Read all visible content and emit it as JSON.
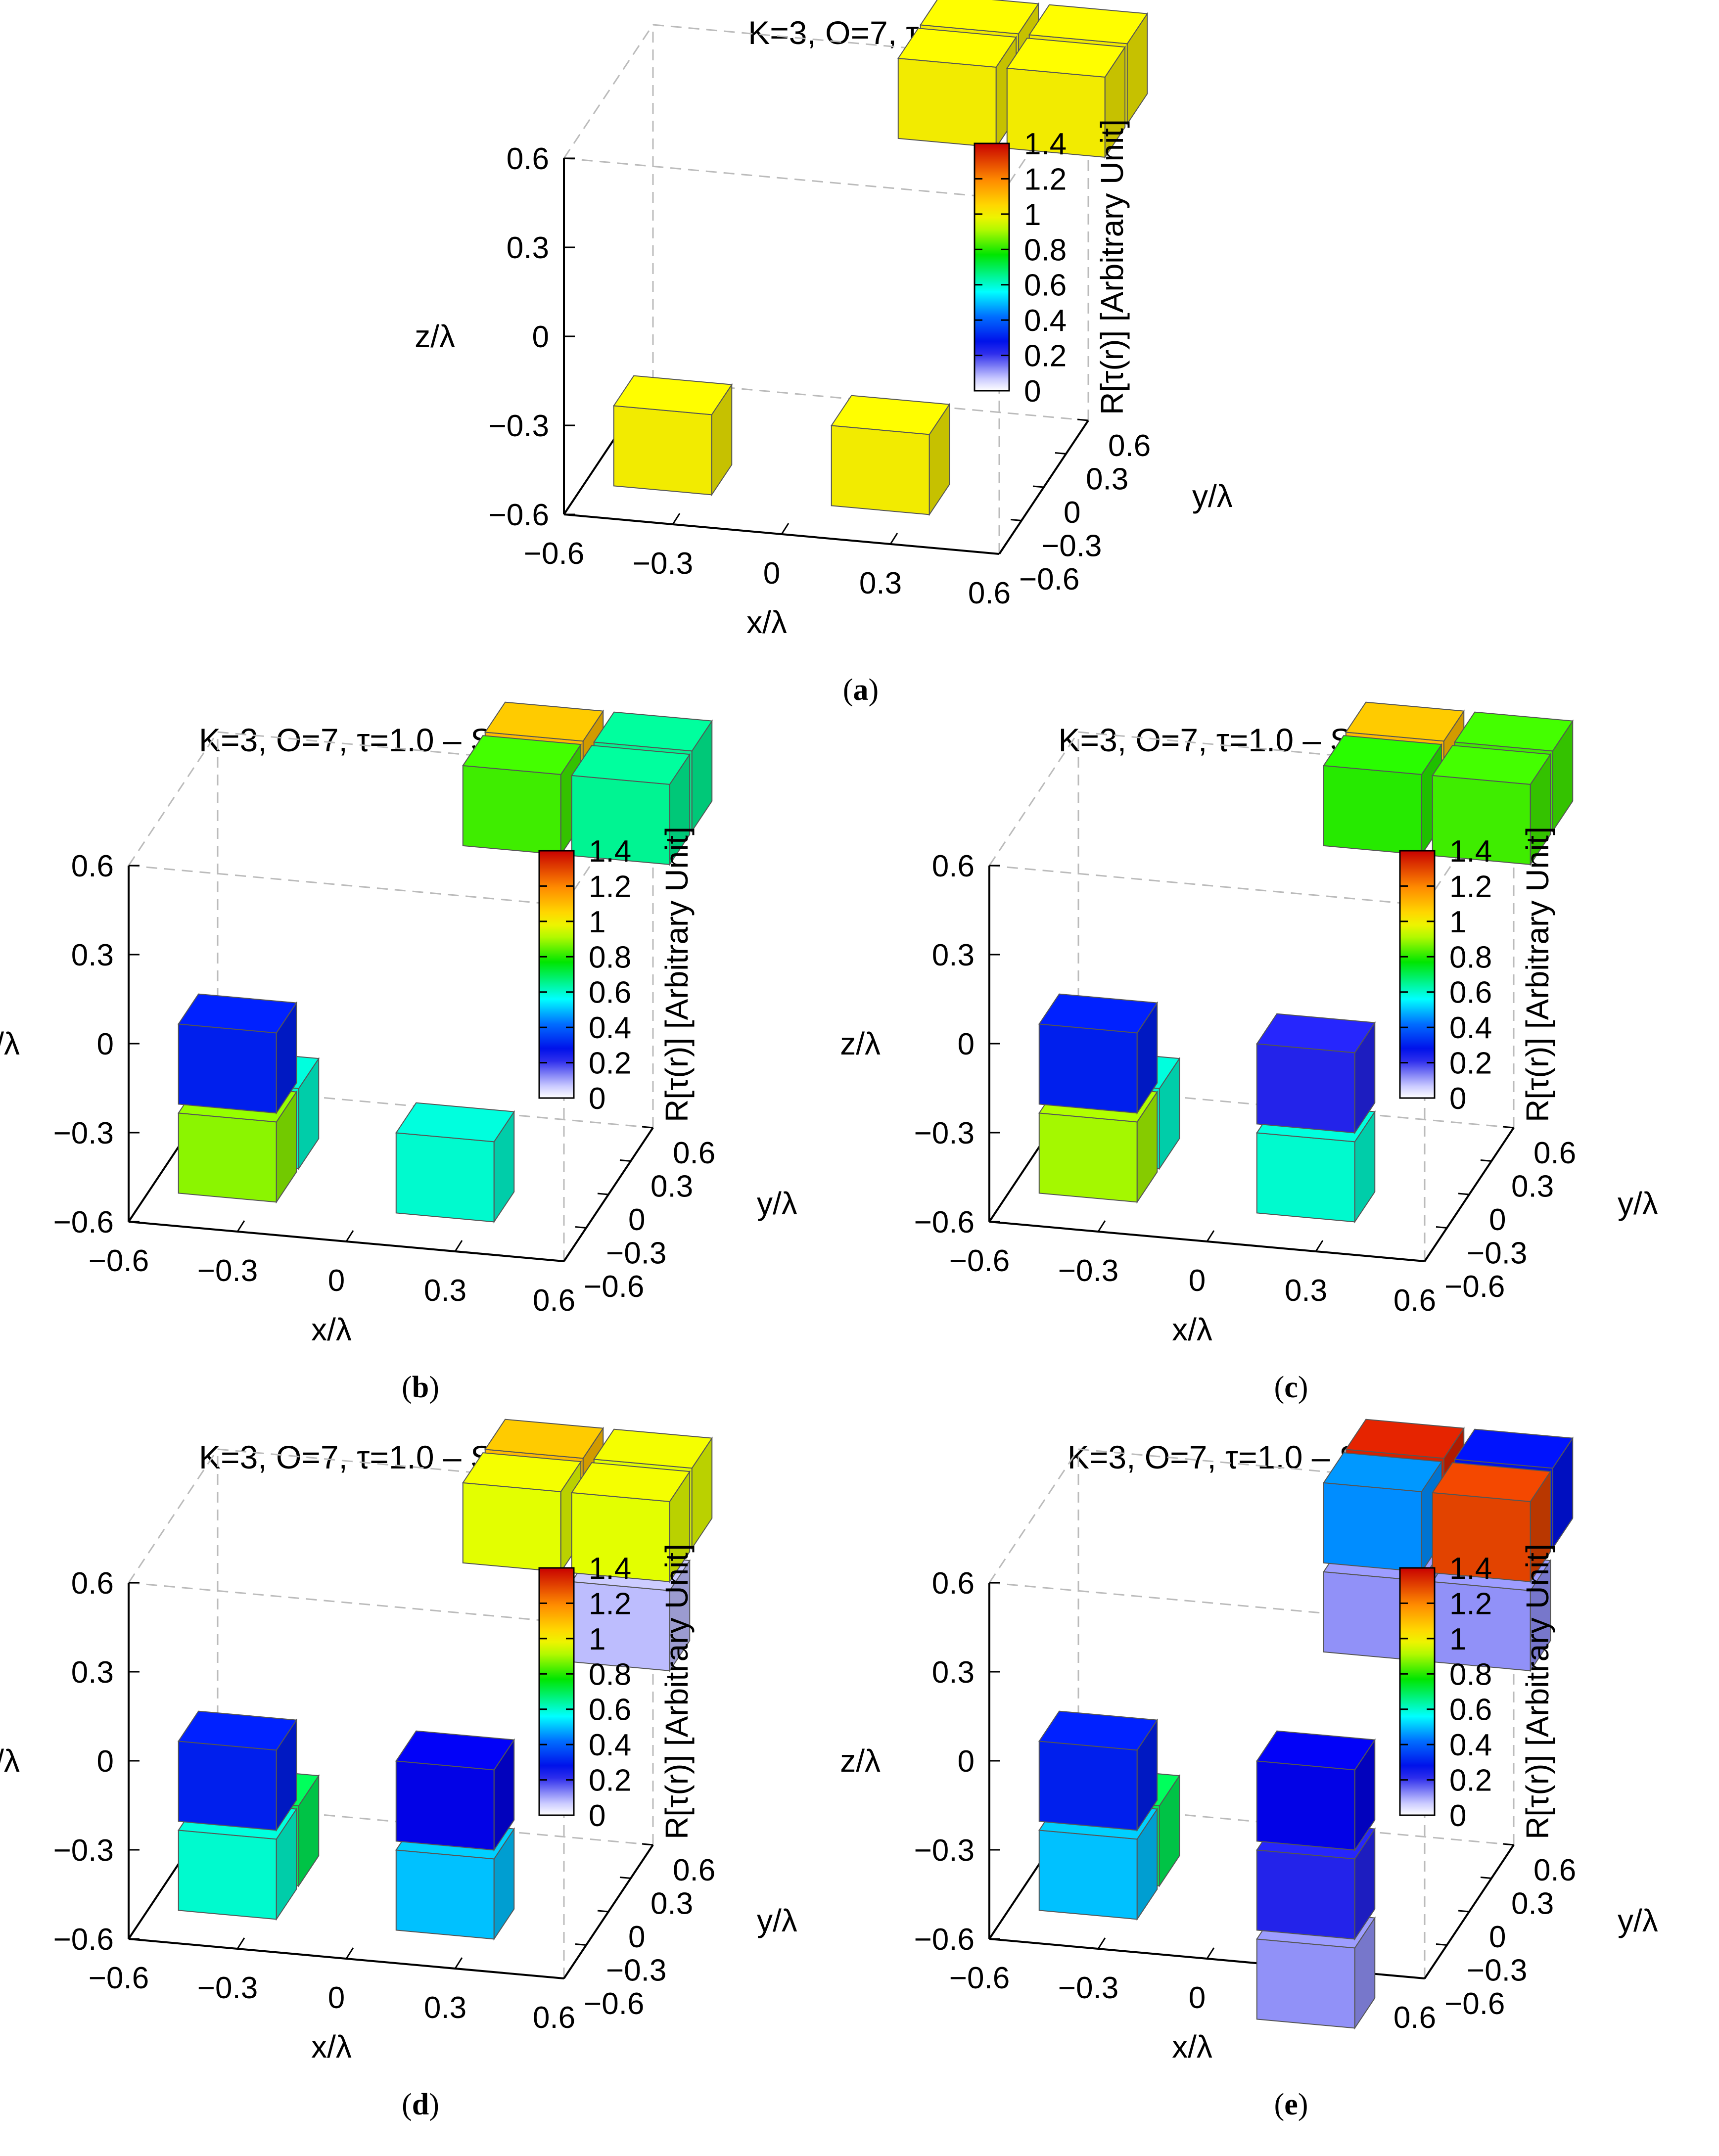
{
  "chart_data": [
    {
      "id": "a",
      "type": "3d-voxel",
      "title": "K=3, O=7, τ=1.0",
      "caption": "a",
      "xlabel": "x/λ",
      "ylabel": "y/λ",
      "zlabel": "z/λ",
      "xticks": [
        "−0.6",
        "−0.3",
        "0",
        "0.3",
        "0.6"
      ],
      "yticks": [
        "−0.6",
        "−0.3",
        "0",
        "0.3",
        "0.6"
      ],
      "zticks": [
        "−0.6",
        "−0.3",
        "0",
        "0.3",
        "0.6"
      ],
      "xlim": [
        -0.6,
        0.6
      ],
      "ylim": [
        -0.6,
        0.6
      ],
      "zlim": [
        -0.6,
        0.6
      ],
      "colorbar": {
        "label": "R[τ(r)] [Arbitrary Unit]",
        "hat": false,
        "range": [
          0,
          1.4
        ],
        "ticks": [
          "0",
          "0.2",
          "0.4",
          "0.6",
          "0.8",
          "1",
          "1.2",
          "1.4"
        ]
      },
      "voxels": [
        {
          "x": -0.3,
          "y": -0.6,
          "z": -0.3,
          "value": 1.0
        },
        {
          "x": 0.3,
          "y": -0.6,
          "z": -0.3,
          "value": 1.0
        },
        {
          "x": 0.6,
          "y": 0.3,
          "z": 0.6,
          "value": 1.0
        },
        {
          "x": 0.6,
          "y": 0.6,
          "z": 0.6,
          "value": 1.0
        },
        {
          "x": 0.3,
          "y": 0.6,
          "z": 0.6,
          "value": 1.0
        },
        {
          "x": 0.3,
          "y": 0.3,
          "z": 0.6,
          "value": 1.0
        }
      ]
    },
    {
      "id": "b",
      "type": "3d-voxel",
      "title": "K=3, O=7, τ=1.0 – SNR=50 [dB]",
      "caption": "b",
      "xlabel": "x/λ",
      "ylabel": "y/λ",
      "zlabel": "z/λ",
      "xticks": [
        "−0.6",
        "−0.3",
        "0",
        "0.3",
        "0.6"
      ],
      "yticks": [
        "−0.6",
        "−0.3",
        "0",
        "0.3",
        "0.6"
      ],
      "zticks": [
        "−0.6",
        "−0.3",
        "0",
        "0.3",
        "0.6"
      ],
      "xlim": [
        -0.6,
        0.6
      ],
      "ylim": [
        -0.6,
        0.6
      ],
      "zlim": [
        -0.6,
        0.6
      ],
      "colorbar": {
        "label": "R[τ(r)] [Arbitrary Unit]",
        "hat": true,
        "range": [
          0,
          1.4
        ],
        "ticks": [
          "0",
          "0.2",
          "0.4",
          "0.6",
          "0.8",
          "1",
          "1.2",
          "1.4"
        ]
      },
      "voxels": [
        {
          "x": -0.3,
          "y": -0.6,
          "z": -0.3,
          "value": 0.88
        },
        {
          "x": -0.3,
          "y": -0.3,
          "z": -0.3,
          "value": 0.6
        },
        {
          "x": -0.3,
          "y": -0.6,
          "z": 0.0,
          "value": 0.3
        },
        {
          "x": 0.3,
          "y": -0.6,
          "z": -0.3,
          "value": 0.6
        },
        {
          "x": 0.6,
          "y": 0.3,
          "z": 0.6,
          "value": 0.65
        },
        {
          "x": 0.6,
          "y": 0.6,
          "z": 0.6,
          "value": 0.65
        },
        {
          "x": 0.3,
          "y": 0.6,
          "z": 0.6,
          "value": 1.1
        },
        {
          "x": 0.3,
          "y": 0.3,
          "z": 0.6,
          "value": 0.82
        }
      ]
    },
    {
      "id": "c",
      "type": "3d-voxel",
      "title": "K=3, O=7, τ=1.0 – SNR=20 [dB]",
      "caption": "c",
      "xlabel": "x/λ",
      "ylabel": "y/λ",
      "zlabel": "z/λ",
      "xticks": [
        "−0.6",
        "−0.3",
        "0",
        "0.3",
        "0.6"
      ],
      "yticks": [
        "−0.6",
        "−0.3",
        "0",
        "0.3",
        "0.6"
      ],
      "zticks": [
        "−0.6",
        "−0.3",
        "0",
        "0.3",
        "0.6"
      ],
      "xlim": [
        -0.6,
        0.6
      ],
      "ylim": [
        -0.6,
        0.6
      ],
      "zlim": [
        -0.6,
        0.6
      ],
      "colorbar": {
        "label": "R[τ(r)] [Arbitrary Unit]",
        "hat": true,
        "range": [
          0,
          1.4
        ],
        "ticks": [
          "0",
          "0.2",
          "0.4",
          "0.6",
          "0.8",
          "1",
          "1.2",
          "1.4"
        ]
      },
      "voxels": [
        {
          "x": -0.3,
          "y": -0.6,
          "z": -0.3,
          "value": 0.9
        },
        {
          "x": -0.3,
          "y": -0.3,
          "z": -0.3,
          "value": 0.6
        },
        {
          "x": -0.3,
          "y": -0.6,
          "z": 0.0,
          "value": 0.3
        },
        {
          "x": 0.3,
          "y": -0.6,
          "z": -0.3,
          "value": 0.6
        },
        {
          "x": 0.3,
          "y": -0.6,
          "z": 0.0,
          "value": 0.22
        },
        {
          "x": 0.6,
          "y": 0.3,
          "z": 0.6,
          "value": 0.82
        },
        {
          "x": 0.6,
          "y": 0.6,
          "z": 0.6,
          "value": 0.82
        },
        {
          "x": 0.3,
          "y": 0.6,
          "z": 0.6,
          "value": 1.1
        },
        {
          "x": 0.3,
          "y": 0.3,
          "z": 0.6,
          "value": 0.8
        }
      ]
    },
    {
      "id": "d",
      "type": "3d-voxel",
      "title": "K=3, O=7, τ=1.0 – SNR=10 [dB]",
      "caption": "d",
      "xlabel": "x/λ",
      "ylabel": "y/λ",
      "zlabel": "z/λ",
      "xticks": [
        "−0.6",
        "−0.3",
        "0",
        "0.3",
        "0.6"
      ],
      "yticks": [
        "−0.6",
        "−0.3",
        "0",
        "0.3",
        "0.6"
      ],
      "zticks": [
        "−0.6",
        "−0.3",
        "0",
        "0.3",
        "0.6"
      ],
      "xlim": [
        -0.6,
        0.6
      ],
      "ylim": [
        -0.6,
        0.6
      ],
      "zlim": [
        -0.6,
        0.6
      ],
      "colorbar": {
        "label": "R[τ(r)] [Arbitrary Unit]",
        "hat": true,
        "range": [
          0,
          1.4
        ],
        "ticks": [
          "0",
          "0.2",
          "0.4",
          "0.6",
          "0.8",
          "1",
          "1.2",
          "1.4"
        ]
      },
      "voxels": [
        {
          "x": -0.3,
          "y": -0.6,
          "z": -0.3,
          "value": 0.6
        },
        {
          "x": -0.3,
          "y": -0.3,
          "z": -0.3,
          "value": 0.7
        },
        {
          "x": -0.3,
          "y": -0.6,
          "z": 0.0,
          "value": 0.3
        },
        {
          "x": 0.3,
          "y": -0.6,
          "z": -0.3,
          "value": 0.5
        },
        {
          "x": 0.3,
          "y": -0.6,
          "z": 0.0,
          "value": 0.25
        },
        {
          "x": 0.6,
          "y": 0.3,
          "z": 0.3,
          "value": 0.08
        },
        {
          "x": 0.6,
          "y": 0.3,
          "z": 0.6,
          "value": 0.95
        },
        {
          "x": 0.6,
          "y": 0.6,
          "z": 0.6,
          "value": 0.95
        },
        {
          "x": 0.3,
          "y": 0.6,
          "z": 0.6,
          "value": 1.1
        },
        {
          "x": 0.3,
          "y": 0.3,
          "z": 0.6,
          "value": 0.95
        }
      ]
    },
    {
      "id": "e",
      "type": "3d-voxel",
      "title": "K=3, O=7, τ=1.0 – SNR=5 [dB]",
      "caption": "e",
      "xlabel": "x/λ",
      "ylabel": "y/λ",
      "zlabel": "z/λ",
      "xticks": [
        "−0.6",
        "−0.3",
        "0",
        "0.3",
        "0.6"
      ],
      "yticks": [
        "−0.6",
        "−0.3",
        "0",
        "0.3",
        "0.6"
      ],
      "zticks": [
        "−0.6",
        "−0.3",
        "0",
        "0.3",
        "0.6"
      ],
      "xlim": [
        -0.6,
        0.6
      ],
      "ylim": [
        -0.6,
        0.6
      ],
      "zlim": [
        -0.6,
        0.6
      ],
      "colorbar": {
        "label": "R[τ(r)] [Arbitrary Unit]",
        "hat": true,
        "range": [
          0,
          1.4
        ],
        "ticks": [
          "0",
          "0.2",
          "0.4",
          "0.6",
          "0.8",
          "1",
          "1.2",
          "1.4"
        ]
      },
      "voxels": [
        {
          "x": -0.3,
          "y": -0.6,
          "z": -0.3,
          "value": 0.5
        },
        {
          "x": -0.3,
          "y": -0.3,
          "z": -0.3,
          "value": 0.7
        },
        {
          "x": -0.3,
          "y": -0.6,
          "z": 0.0,
          "value": 0.3
        },
        {
          "x": 0.3,
          "y": -0.6,
          "z": -0.6,
          "value": 0.12
        },
        {
          "x": 0.3,
          "y": -0.6,
          "z": -0.3,
          "value": 0.22
        },
        {
          "x": 0.3,
          "y": -0.6,
          "z": 0.0,
          "value": 0.25
        },
        {
          "x": 0.3,
          "y": 0.3,
          "z": 0.3,
          "value": 0.12
        },
        {
          "x": 0.6,
          "y": 0.3,
          "z": 0.3,
          "value": 0.12
        },
        {
          "x": 0.6,
          "y": 0.3,
          "z": 0.6,
          "value": 1.3
        },
        {
          "x": 0.6,
          "y": 0.6,
          "z": 0.6,
          "value": 0.28
        },
        {
          "x": 0.3,
          "y": 0.6,
          "z": 0.6,
          "value": 1.35
        },
        {
          "x": 0.3,
          "y": 0.3,
          "z": 0.6,
          "value": 0.45
        }
      ]
    }
  ]
}
